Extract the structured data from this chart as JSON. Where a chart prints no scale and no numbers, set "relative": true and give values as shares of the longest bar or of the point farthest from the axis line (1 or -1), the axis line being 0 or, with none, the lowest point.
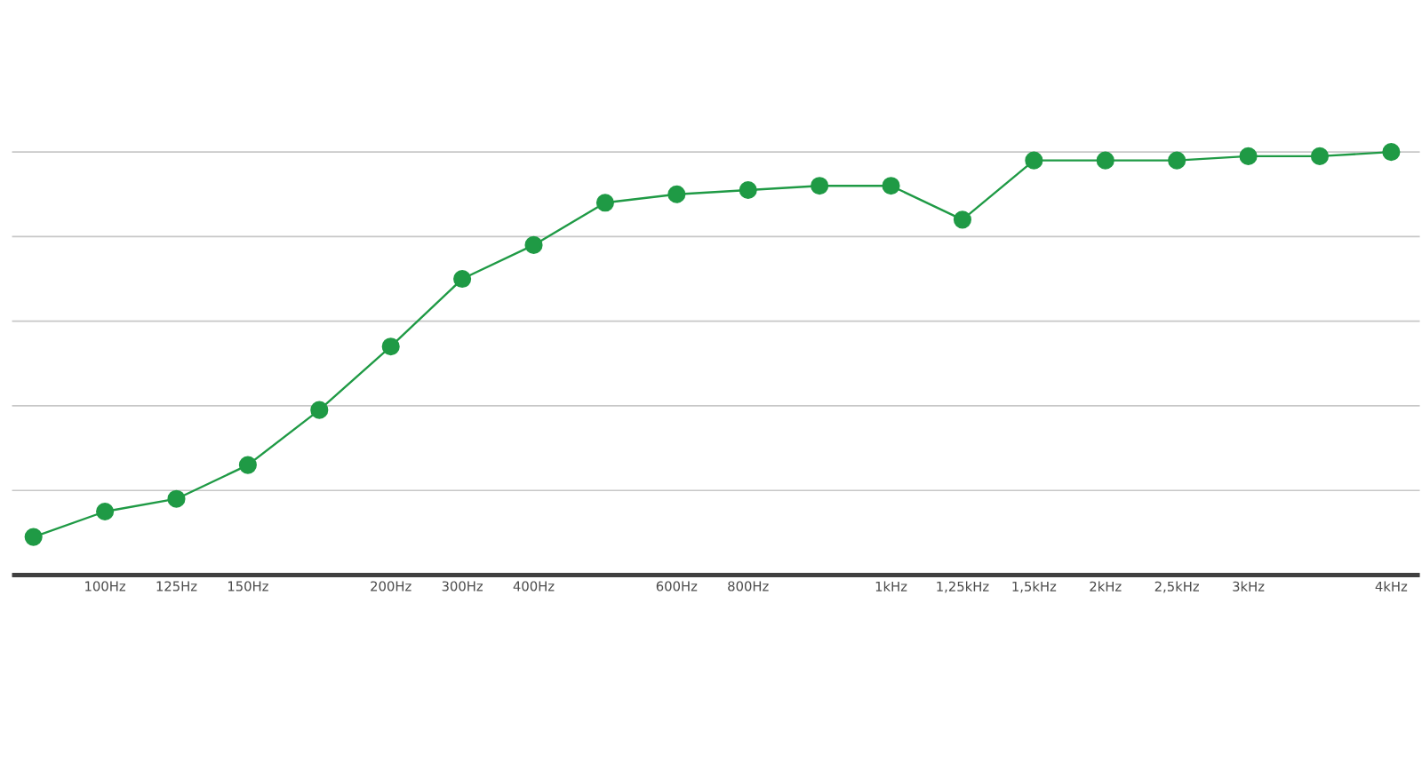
{
  "chart_data": {
    "type": "line",
    "relative": true,
    "categories": [
      null,
      "100Hz",
      "125Hz",
      "150Hz",
      null,
      "200Hz",
      "300Hz",
      "400Hz",
      null,
      "600Hz",
      "800Hz",
      null,
      "1kHz",
      "1,25kHz",
      "1,5kHz",
      "2kHz",
      "2,5kHz",
      "3kHz",
      null,
      "4kHz"
    ],
    "series": [
      {
        "color": "#1f9a45",
        "values": [
          0.09,
          0.15,
          0.18,
          0.26,
          0.39,
          0.54,
          0.7,
          0.78,
          0.88,
          0.9,
          0.91,
          0.92,
          0.92,
          0.84,
          0.98,
          0.98,
          0.98,
          0.99,
          0.99,
          1.0
        ]
      }
    ],
    "grid": "y",
    "marker": "circle",
    "line_style": "solid"
  }
}
